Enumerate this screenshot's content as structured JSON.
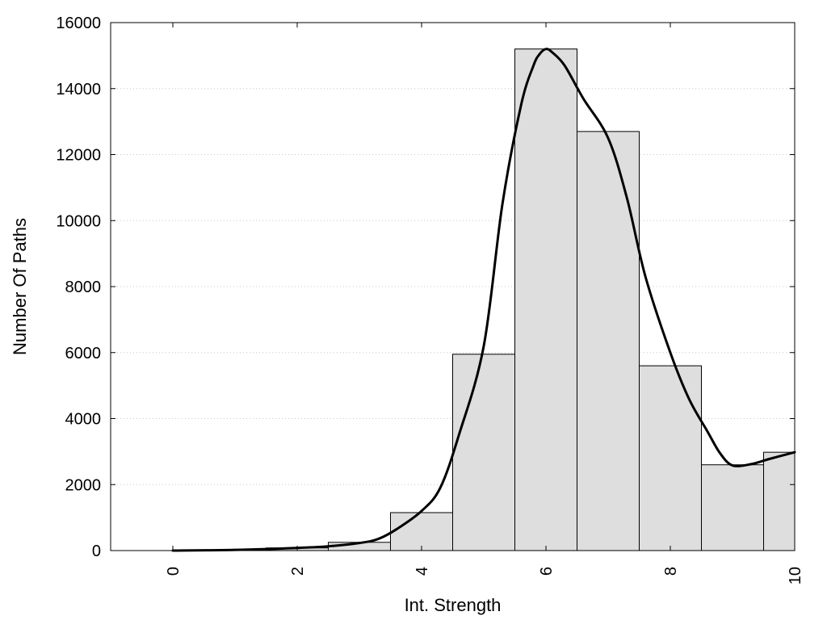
{
  "chart_data": {
    "type": "bar",
    "xlabel": "Int. Strength",
    "ylabel": "Number Of Paths",
    "xlim": [
      -1,
      10
    ],
    "ylim": [
      0,
      16000
    ],
    "x_ticks": [
      0,
      2,
      4,
      6,
      8,
      10
    ],
    "y_ticks": [
      0,
      2000,
      4000,
      6000,
      8000,
      10000,
      12000,
      14000,
      16000
    ],
    "grid": "horizontal dotted",
    "bar_width": 1,
    "bars": [
      {
        "x": 0,
        "value": 0
      },
      {
        "x": 1,
        "value": 0
      },
      {
        "x": 2,
        "value": 80
      },
      {
        "x": 3,
        "value": 250
      },
      {
        "x": 4,
        "value": 1150
      },
      {
        "x": 5,
        "value": 5950
      },
      {
        "x": 6,
        "value": 15200
      },
      {
        "x": 7,
        "value": 12700
      },
      {
        "x": 8,
        "value": 5600
      },
      {
        "x": 9,
        "value": 2600
      },
      {
        "x": 10,
        "value": 2980
      }
    ],
    "curve": {
      "x": [
        0,
        1,
        2,
        2.5,
        3,
        3.3,
        3.6,
        4,
        4.3,
        4.6,
        5,
        5.3,
        5.6,
        5.8,
        5.9,
        6,
        6.1,
        6.3,
        6.6,
        7,
        7.3,
        7.6,
        8,
        8.3,
        8.6,
        8.8,
        9,
        9.3,
        9.6,
        10
      ],
      "y": [
        0,
        20,
        80,
        130,
        230,
        350,
        650,
        1200,
        1900,
        3500,
        6200,
        10500,
        13500,
        14700,
        15050,
        15200,
        15100,
        14700,
        13700,
        12500,
        10700,
        8300,
        6000,
        4600,
        3600,
        2950,
        2580,
        2620,
        2780,
        2980
      ]
    },
    "colors": {
      "bar_fill": "#dedede",
      "bar_stroke": "#000000",
      "curve": "#000000",
      "grid": "#c8c8c8"
    }
  }
}
